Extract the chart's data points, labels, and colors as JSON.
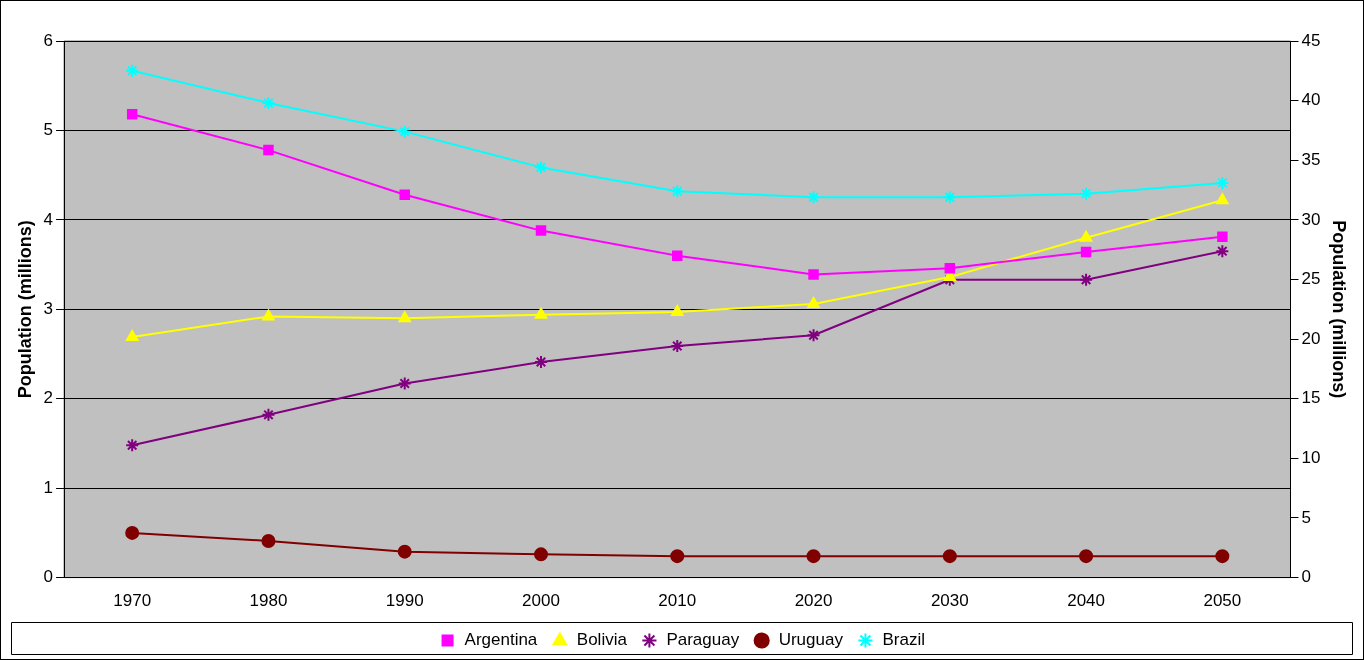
{
  "chart_data": {
    "type": "line",
    "ylabel": "Population (millions)",
    "y2label": "Population (millions)",
    "categories": [
      "1970",
      "1980",
      "1990",
      "2000",
      "2010",
      "2020",
      "2030",
      "2040",
      "2050"
    ],
    "series": [
      {
        "name": "Argentina",
        "color": "#ff00ff",
        "marker": "square",
        "values": [
          5.18,
          4.78,
          4.28,
          3.88,
          3.6,
          3.39,
          3.46,
          3.64,
          3.81
        ]
      },
      {
        "name": "Bolivia",
        "color": "#ffff00",
        "marker": "triangle",
        "values": [
          2.69,
          2.92,
          2.9,
          2.94,
          2.97,
          3.06,
          3.36,
          3.8,
          4.22
        ]
      },
      {
        "name": "Paraguay",
        "color": "#800080",
        "marker": "cross",
        "values": [
          1.48,
          1.82,
          2.17,
          2.41,
          2.59,
          2.71,
          3.33,
          3.33,
          3.65
        ]
      },
      {
        "name": "Uruguay",
        "color": "#800000",
        "marker": "circle",
        "values": [
          0.5,
          0.41,
          0.29,
          0.26,
          0.24,
          0.24,
          0.24,
          0.24,
          0.24
        ]
      },
      {
        "name": "Brazil",
        "color": "#00ffff",
        "marker": "cross",
        "axis": "y2",
        "values": [
          42.5,
          39.8,
          37.4,
          34.4,
          32.4,
          31.9,
          31.9,
          32.2,
          33.1
        ]
      }
    ],
    "ylim": [
      0,
      6
    ],
    "yticks": [
      0,
      1,
      2,
      3,
      4,
      5,
      6
    ],
    "y2lim": [
      0,
      45
    ],
    "y2ticks": [
      0,
      5,
      10,
      15,
      20,
      25,
      30,
      35,
      40,
      45
    ],
    "grid": "y",
    "legend": "bottom"
  }
}
